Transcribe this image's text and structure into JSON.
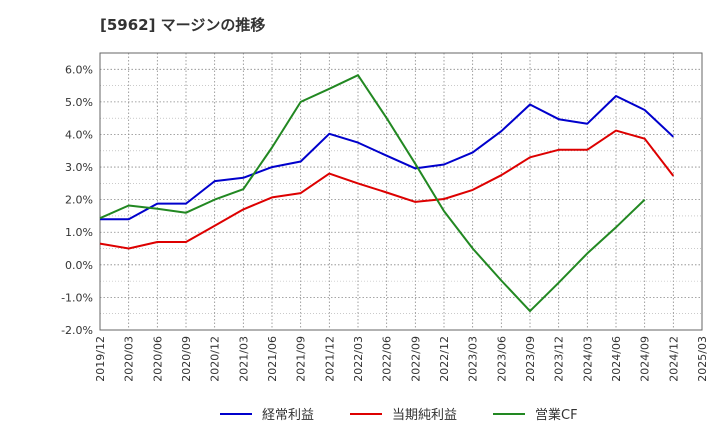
{
  "chart_data": {
    "type": "line",
    "title": "[5962]  マージンの推移",
    "x": [
      "2019/12",
      "2020/03",
      "2020/06",
      "2020/09",
      "2020/12",
      "2021/03",
      "2021/06",
      "2021/09",
      "2021/12",
      "2022/03",
      "2022/06",
      "2022/09",
      "2022/12",
      "2023/03",
      "2023/06",
      "2023/09",
      "2023/12",
      "2024/03",
      "2024/06",
      "2024/09",
      "2024/12",
      "2025/03"
    ],
    "yticks": [
      "6.0%",
      "5.0%",
      "4.0%",
      "3.0%",
      "2.0%",
      "1.0%",
      "0.0%",
      "-1.0%",
      "-2.0%"
    ],
    "ylim": [
      -2.0,
      6.5
    ],
    "grid": true,
    "legend_position": "bottom",
    "series": [
      {
        "name": "経常利益",
        "color": "#0000cc",
        "values": [
          1.4,
          1.4,
          1.88,
          1.88,
          2.57,
          2.67,
          3.0,
          3.17,
          4.02,
          3.75,
          3.35,
          2.96,
          3.08,
          3.45,
          4.1,
          4.92,
          4.47,
          4.33,
          5.18,
          4.75,
          3.93,
          null
        ]
      },
      {
        "name": "当期純利益",
        "color": "#dd0000",
        "values": [
          0.65,
          0.5,
          0.7,
          0.7,
          1.2,
          1.7,
          2.07,
          2.2,
          2.8,
          2.5,
          2.22,
          1.93,
          2.02,
          2.3,
          2.75,
          3.3,
          3.53,
          3.53,
          4.12,
          3.87,
          2.73,
          null
        ]
      },
      {
        "name": "営業CF",
        "color": "#228822",
        "values": [
          1.43,
          1.82,
          1.72,
          1.6,
          2.0,
          2.32,
          3.6,
          5.0,
          5.4,
          5.82,
          4.5,
          3.1,
          1.65,
          0.5,
          -0.48,
          -1.42,
          -0.55,
          0.35,
          1.15,
          2.0,
          null,
          null
        ]
      }
    ]
  }
}
